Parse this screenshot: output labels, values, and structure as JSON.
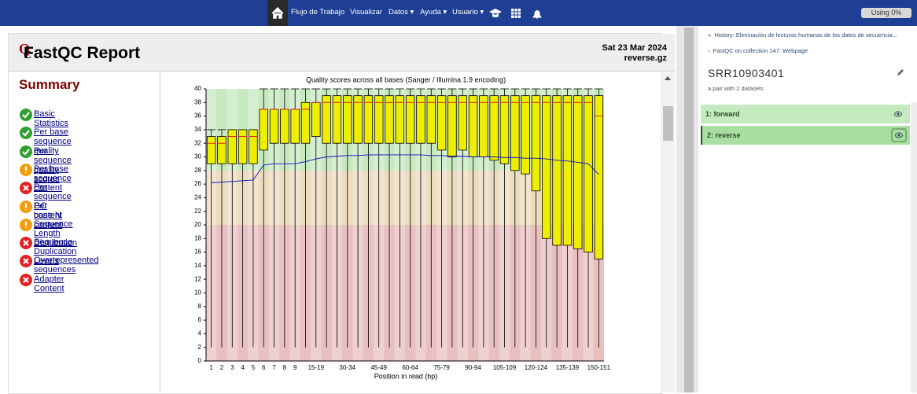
{
  "navbar": {
    "items": [
      "Flujo de Trabajo",
      "Visualizar",
      "Datos",
      "Ayuda",
      "Usuario"
    ],
    "usage": "Using 0%"
  },
  "report": {
    "title": "FastQC Report",
    "date": "Sat 23 Mar 2024",
    "file": "reverse.gz",
    "summary_title": "Summary",
    "summary": [
      {
        "label": "Basic Statistics",
        "status": "pass"
      },
      {
        "label": "Per base sequence quality",
        "status": "pass"
      },
      {
        "label": "Per sequence quality scores",
        "status": "pass"
      },
      {
        "label": "Per base sequence content",
        "status": "warn"
      },
      {
        "label": "Per sequence GC content",
        "status": "fail"
      },
      {
        "label": "Per base N content",
        "status": "warn"
      },
      {
        "label": "Sequence Length Distribution",
        "status": "warn"
      },
      {
        "label": "Sequence Duplication Levels",
        "status": "fail"
      },
      {
        "label": "Overrepresented sequences",
        "status": "fail"
      },
      {
        "label": "Adapter Content",
        "status": "fail"
      }
    ]
  },
  "chart_data": {
    "type": "box",
    "title": "Quality scores across all bases (Sanger / Illumina 1.9 encoding)",
    "x_label": "Position in read (bp)",
    "categories": [
      "1",
      "2",
      "3",
      "4",
      "5",
      "6",
      "7",
      "8",
      "9",
      null,
      "15-19",
      null,
      null,
      "30-34",
      null,
      null,
      "45-49",
      null,
      null,
      "60-64",
      null,
      null,
      "75-79",
      null,
      null,
      "90-94",
      null,
      null,
      "105-109",
      null,
      null,
      "120-124",
      null,
      null,
      "135-139",
      null,
      null,
      "150-151"
    ],
    "lower": [
      2,
      2,
      2,
      2,
      2,
      2,
      2,
      2,
      2,
      2,
      2,
      2,
      2,
      2,
      2,
      2,
      2,
      2,
      2,
      2,
      2,
      2,
      2,
      2,
      2,
      2,
      2,
      2,
      2,
      2,
      2,
      2,
      2,
      2,
      2,
      2,
      2,
      2
    ],
    "q1": [
      29,
      29,
      29,
      29,
      29,
      31,
      32,
      32,
      32,
      32,
      33,
      32,
      32,
      32,
      32,
      32,
      32,
      32,
      32,
      32,
      32,
      32,
      31,
      30,
      31,
      30,
      30,
      29.5,
      29,
      28,
      27.5,
      25,
      18,
      17,
      17,
      16.5,
      16,
      15
    ],
    "median": [
      32,
      32,
      33,
      33,
      33,
      37,
      37,
      37,
      37,
      37,
      38,
      38,
      38,
      38,
      38,
      38,
      38,
      38,
      38,
      38,
      38,
      38,
      38,
      38,
      38,
      38,
      38,
      38,
      38,
      38,
      38,
      38,
      38,
      38,
      38,
      38,
      38,
      36
    ],
    "q3": [
      33,
      33,
      34,
      34,
      34,
      37,
      37,
      37,
      37,
      38,
      38,
      39,
      39,
      39,
      39,
      39,
      39,
      39,
      39,
      39,
      39,
      39,
      39,
      39,
      39,
      39,
      39,
      39,
      39,
      39,
      39,
      39,
      39,
      39,
      39,
      39,
      39,
      39
    ],
    "upper": [
      34,
      34,
      34,
      34,
      34,
      40,
      40,
      40,
      40,
      40,
      40,
      40,
      40,
      40,
      40,
      40,
      40,
      40,
      40,
      40,
      40,
      40,
      40,
      40,
      40,
      40,
      40,
      40,
      40,
      40,
      40,
      40,
      40,
      40,
      40,
      40,
      40,
      40
    ],
    "mean": [
      26.2,
      26.3,
      26.4,
      26.5,
      26.6,
      28.8,
      29,
      29,
      29,
      29.3,
      29.7,
      30,
      30.1,
      30.2,
      30.2,
      30.3,
      30.3,
      30.3,
      30.3,
      30.3,
      30.3,
      30.2,
      30.2,
      30.1,
      30.1,
      30,
      30,
      30,
      29.9,
      29.9,
      29.8,
      29.8,
      29.7,
      29.5,
      29.4,
      29.2,
      29.0,
      27.4
    ],
    "box_color": "#eeee00",
    "median_color": "#e02020",
    "mean_color": "#1010c0",
    "bands": [
      {
        "from": 28,
        "to": 40,
        "color": "#c8e8c0"
      },
      {
        "from": 20,
        "to": 28,
        "color": "#ecdcc0"
      },
      {
        "from": 0,
        "to": 20,
        "color": "#e8c0c0"
      }
    ],
    "ylim": [
      0,
      40
    ],
    "yticks": [
      0,
      2,
      4,
      6,
      8,
      10,
      12,
      14,
      16,
      18,
      20,
      22,
      24,
      26,
      28,
      30,
      32,
      34,
      36,
      38,
      40
    ]
  },
  "history": {
    "link1": "History: Eliminación de lecturas humanas de los datos de secuencia...",
    "link2": "FastQC on collection 147: Webpage",
    "name": "SRR10903401",
    "subtitle": "a pair with 2 datasets",
    "items": [
      "1: forward",
      "2: reverse"
    ]
  }
}
